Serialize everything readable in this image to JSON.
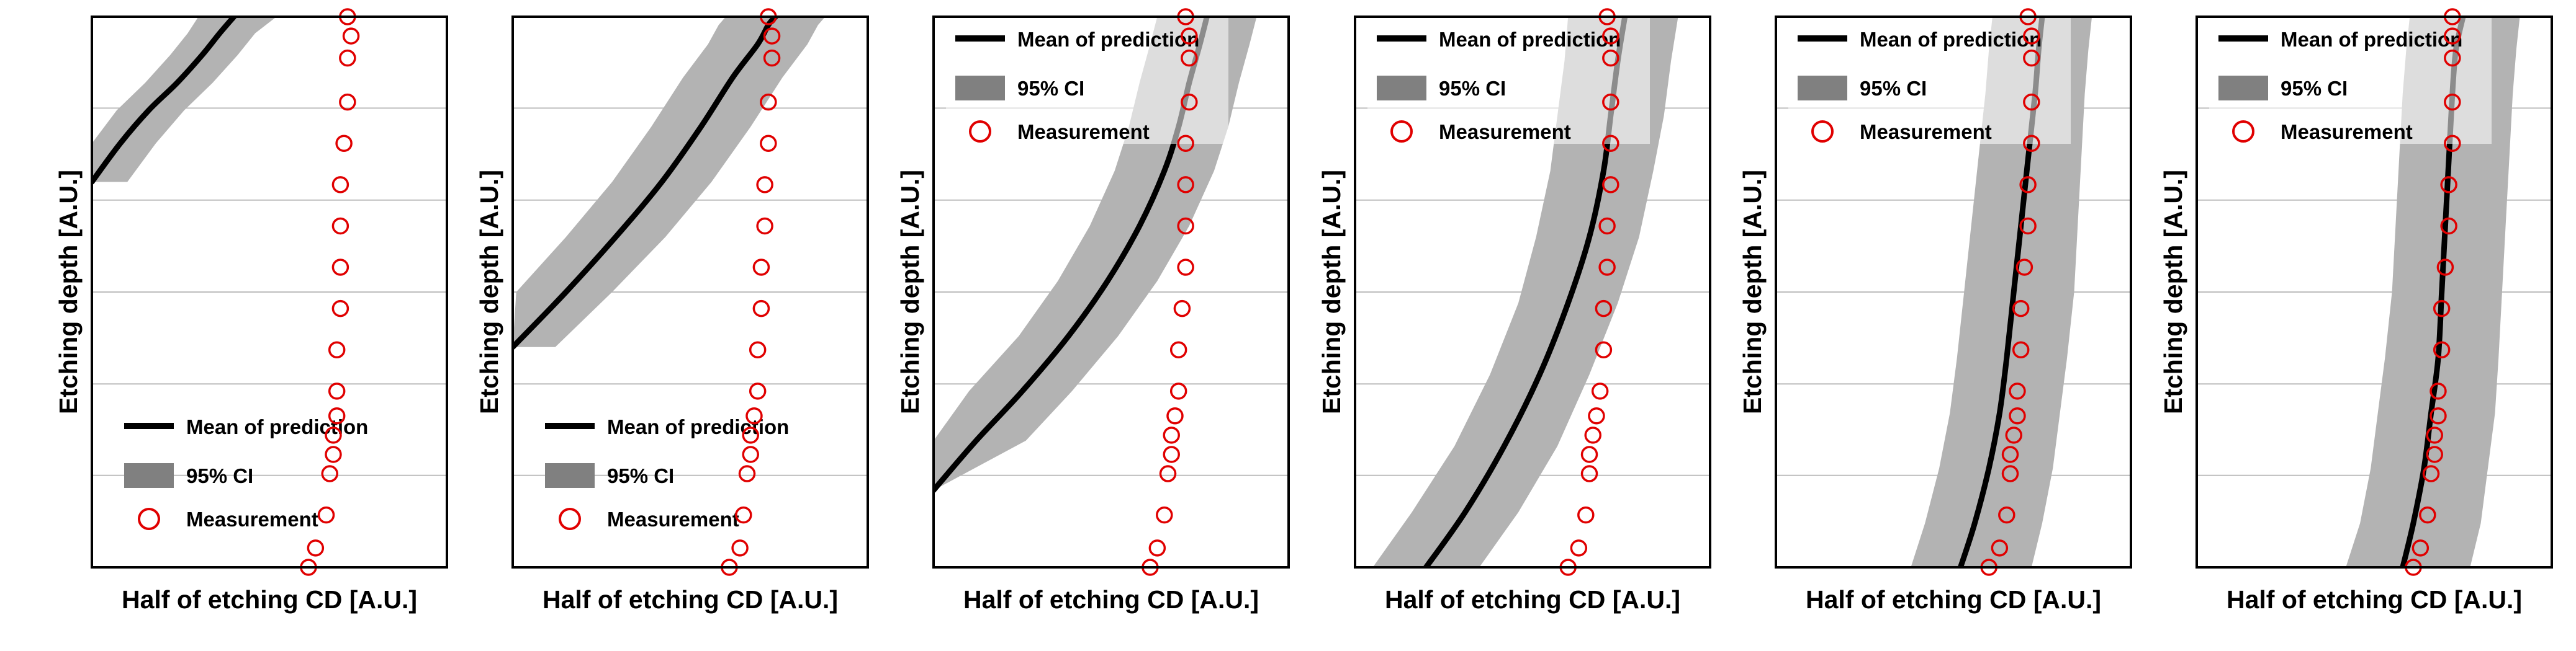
{
  "colors": {
    "band": "#b3b3b3",
    "mean": "#000000",
    "measurement": "#e00000",
    "measurement_purple": "#b05fcf",
    "gridline": "#bdbdbd",
    "frame": "#000000",
    "legend_box": "#ffffff"
  },
  "chart_data": [
    {
      "type": "line",
      "xlabel": "Half of etching CD [A.U.]",
      "ylabel": "Etching depth [A.U.]",
      "xlim": [
        0,
        1
      ],
      "ylim": [
        0,
        1
      ],
      "grid": "horizontal",
      "legend": {
        "placement": "bottom-left",
        "boxed": false,
        "entries": [
          "Mean of prediction",
          "95% CI",
          "Measurement"
        ]
      },
      "series": [
        {
          "name": "Mean of prediction",
          "style": "line",
          "x": [
            0.0,
            0.08,
            0.16,
            0.24,
            0.31,
            0.36,
            0.4
          ],
          "y": [
            0.7,
            0.77,
            0.83,
            0.88,
            0.93,
            0.97,
            1.0
          ]
        },
        {
          "name": "95% CI",
          "style": "band",
          "x_lower": [
            0.0,
            0.0,
            0.07,
            0.15,
            0.22,
            0.27,
            0.3
          ],
          "x_upper": [
            0.1,
            0.18,
            0.26,
            0.34,
            0.41,
            0.46,
            0.52
          ],
          "y": [
            0.7,
            0.77,
            0.83,
            0.88,
            0.93,
            0.97,
            1.0
          ]
        },
        {
          "name": "Measurement",
          "style": "markers",
          "x": [
            0.61,
            0.63,
            0.66,
            0.67,
            0.68,
            0.68,
            0.69,
            0.69,
            0.69,
            0.7,
            0.7,
            0.7,
            0.7,
            0.71,
            0.72,
            0.72,
            0.73,
            0.72
          ],
          "y": [
            0.0,
            0.035,
            0.095,
            0.17,
            0.205,
            0.24,
            0.275,
            0.32,
            0.395,
            0.47,
            0.545,
            0.62,
            0.695,
            0.77,
            0.845,
            0.925,
            0.965,
            1.0
          ]
        }
      ]
    },
    {
      "type": "line",
      "xlabel": "Half of etching CD [A.U.]",
      "ylabel": "Etching depth [A.U.]",
      "xlim": [
        0,
        1
      ],
      "ylim": [
        0,
        1
      ],
      "grid": "horizontal",
      "legend": {
        "placement": "bottom-left",
        "boxed": false,
        "entries": [
          "Mean of prediction",
          "95% CI",
          "Measurement"
        ]
      },
      "series": [
        {
          "name": "Mean of prediction",
          "style": "line",
          "x": [
            0.0,
            0.15,
            0.29,
            0.42,
            0.53,
            0.62,
            0.69,
            0.72,
            0.74
          ],
          "y": [
            0.4,
            0.5,
            0.6,
            0.7,
            0.8,
            0.89,
            0.95,
            0.985,
            1.0
          ]
        },
        {
          "name": "95% CI",
          "style": "band",
          "x_lower": [
            0.0,
            0.01,
            0.15,
            0.28,
            0.39,
            0.48,
            0.55,
            0.58,
            0.6
          ],
          "x_upper": [
            0.12,
            0.28,
            0.43,
            0.56,
            0.67,
            0.76,
            0.83,
            0.86,
            0.88
          ],
          "y": [
            0.4,
            0.5,
            0.6,
            0.7,
            0.8,
            0.89,
            0.95,
            0.985,
            1.0
          ]
        },
        {
          "name": "Measurement",
          "style": "markers",
          "x": [
            0.61,
            0.64,
            0.65,
            0.66,
            0.67,
            0.67,
            0.68,
            0.69,
            0.69,
            0.7,
            0.7,
            0.71,
            0.71,
            0.72,
            0.72,
            0.73,
            0.73,
            0.72
          ],
          "y": [
            0.0,
            0.035,
            0.095,
            0.17,
            0.205,
            0.24,
            0.275,
            0.32,
            0.395,
            0.47,
            0.545,
            0.62,
            0.695,
            0.77,
            0.845,
            0.925,
            0.965,
            1.0
          ]
        }
      ]
    },
    {
      "type": "line",
      "xlabel": "Half of etching CD [A.U.]",
      "ylabel": "Etching depth [A.U.]",
      "xlim": [
        0,
        1
      ],
      "ylim": [
        0,
        1
      ],
      "grid": "horizontal",
      "legend": {
        "placement": "top-right",
        "boxed": true,
        "entries": [
          "Mean of prediction",
          "95% CI",
          "Measurement"
        ]
      },
      "series": [
        {
          "name": "Mean of prediction",
          "style": "line",
          "x": [
            0.0,
            0.12,
            0.25,
            0.38,
            0.49,
            0.58,
            0.65,
            0.69,
            0.72,
            0.75,
            0.77
          ],
          "y": [
            0.14,
            0.23,
            0.32,
            0.42,
            0.52,
            0.62,
            0.72,
            0.8,
            0.88,
            0.95,
            1.0
          ]
        },
        {
          "name": "95% CI",
          "style": "band",
          "x_lower": [
            0.0,
            0.0,
            0.1,
            0.24,
            0.35,
            0.44,
            0.51,
            0.55,
            0.58,
            0.61,
            0.63
          ],
          "x_upper": [
            0.0,
            0.26,
            0.39,
            0.52,
            0.63,
            0.72,
            0.79,
            0.83,
            0.86,
            0.89,
            0.91
          ],
          "y": [
            0.14,
            0.23,
            0.32,
            0.42,
            0.52,
            0.62,
            0.72,
            0.8,
            0.88,
            0.95,
            1.0
          ]
        },
        {
          "name": "Measurement",
          "style": "markers",
          "x": [
            0.61,
            0.63,
            0.65,
            0.66,
            0.67,
            0.67,
            0.68,
            0.69,
            0.69,
            0.7,
            0.71,
            0.71,
            0.71,
            0.71,
            0.72,
            0.72,
            0.72,
            0.71
          ],
          "y": [
            0.0,
            0.035,
            0.095,
            0.17,
            0.205,
            0.24,
            0.275,
            0.32,
            0.395,
            0.47,
            0.545,
            0.62,
            0.695,
            0.77,
            0.845,
            0.925,
            0.965,
            1.0
          ]
        }
      ]
    },
    {
      "type": "line",
      "xlabel": "Half of etching CD [A.U.]",
      "ylabel": "Etching depth [A.U.]",
      "xlim": [
        0,
        1
      ],
      "ylim": [
        0,
        1
      ],
      "grid": "horizontal",
      "legend": {
        "placement": "top-right",
        "boxed": true,
        "entries": [
          "Mean of prediction",
          "95% CI",
          "Measurement"
        ]
      },
      "series": [
        {
          "name": "Mean of prediction",
          "style": "line",
          "x": [
            0.2,
            0.31,
            0.42,
            0.52,
            0.6,
            0.66,
            0.7,
            0.72,
            0.74,
            0.76
          ],
          "y": [
            0.0,
            0.1,
            0.22,
            0.35,
            0.48,
            0.6,
            0.72,
            0.82,
            0.92,
            1.0
          ]
        },
        {
          "name": "95% CI",
          "style": "band",
          "x_lower": [
            0.05,
            0.16,
            0.28,
            0.38,
            0.46,
            0.51,
            0.55,
            0.57,
            0.59,
            0.6
          ],
          "x_upper": [
            0.35,
            0.46,
            0.57,
            0.66,
            0.74,
            0.8,
            0.84,
            0.87,
            0.89,
            0.91
          ],
          "y": [
            0.0,
            0.1,
            0.22,
            0.35,
            0.48,
            0.6,
            0.72,
            0.82,
            0.92,
            1.0
          ]
        },
        {
          "name": "Measurement",
          "style": "markers",
          "x": [
            0.6,
            0.63,
            0.65,
            0.66,
            0.66,
            0.67,
            0.68,
            0.69,
            0.7,
            0.7,
            0.71,
            0.71,
            0.72,
            0.72,
            0.72,
            0.72,
            0.72,
            0.71
          ],
          "y": [
            0.0,
            0.035,
            0.095,
            0.17,
            0.205,
            0.24,
            0.275,
            0.32,
            0.395,
            0.47,
            0.545,
            0.62,
            0.695,
            0.77,
            0.845,
            0.925,
            0.965,
            1.0
          ]
        }
      ]
    },
    {
      "type": "line",
      "xlabel": "Half of etching CD [A.U.]",
      "ylabel": "Etching depth [A.U.]",
      "xlim": [
        0,
        1
      ],
      "ylim": [
        0,
        1
      ],
      "grid": "horizontal",
      "legend": {
        "placement": "top-right",
        "boxed": true,
        "entries": [
          "Mean of prediction",
          "95% CI",
          "Measurement"
        ]
      },
      "series": [
        {
          "name": "Mean of prediction",
          "style": "line",
          "x": [
            0.52,
            0.56,
            0.6,
            0.63,
            0.65,
            0.67,
            0.69,
            0.71,
            0.73,
            0.74,
            0.75
          ],
          "y": [
            0.0,
            0.08,
            0.18,
            0.28,
            0.38,
            0.5,
            0.62,
            0.74,
            0.86,
            0.94,
            1.0
          ]
        },
        {
          "name": "95% CI",
          "style": "band",
          "x_lower": [
            0.38,
            0.42,
            0.46,
            0.49,
            0.51,
            0.53,
            0.55,
            0.57,
            0.59,
            0.6,
            0.61
          ],
          "x_upper": [
            0.72,
            0.75,
            0.78,
            0.8,
            0.82,
            0.84,
            0.85,
            0.86,
            0.87,
            0.88,
            0.89
          ],
          "y": [
            0.0,
            0.08,
            0.18,
            0.28,
            0.38,
            0.5,
            0.62,
            0.74,
            0.86,
            0.94,
            1.0
          ]
        },
        {
          "name": "Measurement",
          "style": "markers",
          "x": [
            0.6,
            0.63,
            0.65,
            0.66,
            0.66,
            0.67,
            0.68,
            0.68,
            0.69,
            0.69,
            0.7,
            0.71,
            0.71,
            0.72,
            0.72,
            0.72,
            0.72,
            0.71
          ],
          "y": [
            0.0,
            0.035,
            0.095,
            0.17,
            0.205,
            0.24,
            0.275,
            0.32,
            0.395,
            0.47,
            0.545,
            0.62,
            0.695,
            0.77,
            0.845,
            0.925,
            0.965,
            1.0
          ]
        }
      ]
    },
    {
      "type": "line",
      "xlabel": "Half of etching CD [A.U.]",
      "ylabel": "Etching depth [A.U.]",
      "xlim": [
        0,
        1
      ],
      "ylim": [
        0,
        1
      ],
      "grid": "horizontal",
      "legend": {
        "placement": "top-right",
        "boxed": true,
        "entries": [
          "Mean of prediction",
          "95% CI",
          "Measurement"
        ]
      },
      "series": [
        {
          "name": "Mean of prediction",
          "style": "line",
          "x": [
            0.58,
            0.61,
            0.64,
            0.66,
            0.68,
            0.69,
            0.7,
            0.71,
            0.72,
            0.73,
            0.75
          ],
          "y": [
            0.0,
            0.08,
            0.18,
            0.28,
            0.38,
            0.5,
            0.62,
            0.74,
            0.86,
            0.94,
            1.0
          ]
        },
        {
          "name": "95% CI",
          "style": "band",
          "x_lower": [
            0.42,
            0.46,
            0.49,
            0.51,
            0.53,
            0.55,
            0.56,
            0.57,
            0.58,
            0.59,
            0.6
          ],
          "x_upper": [
            0.77,
            0.8,
            0.82,
            0.84,
            0.85,
            0.86,
            0.87,
            0.88,
            0.89,
            0.9,
            0.91
          ],
          "y": [
            0.0,
            0.08,
            0.18,
            0.28,
            0.38,
            0.5,
            0.62,
            0.74,
            0.86,
            0.94,
            1.0
          ]
        },
        {
          "name": "Measurement",
          "style": "markers",
          "x": [
            0.61,
            0.63,
            0.65,
            0.66,
            0.67,
            0.67,
            0.68,
            0.68,
            0.69,
            0.69,
            0.7,
            0.71,
            0.71,
            0.72,
            0.72,
            0.72,
            0.72,
            0.72
          ],
          "y": [
            0.0,
            0.035,
            0.095,
            0.17,
            0.205,
            0.24,
            0.275,
            0.32,
            0.395,
            0.47,
            0.545,
            0.62,
            0.695,
            0.77,
            0.845,
            0.925,
            0.965,
            1.0
          ]
        }
      ]
    }
  ]
}
